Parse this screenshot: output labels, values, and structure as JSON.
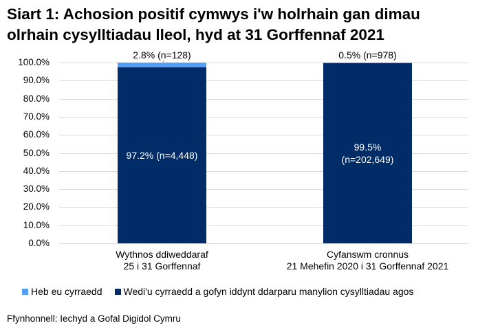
{
  "chart_data": {
    "type": "bar",
    "stacked": true,
    "title": "Siart 1: Achosion positif cymwys i'w holrhain gan dimau olrhain cysylltiadau lleol, hyd at 31 Gorffennaf 2021",
    "title_lines": [
      "Siart 1: Achosion positif cymwys i'w holrhain gan dimau",
      "olrhain cysylltiadau lleol, hyd at 31 Gorffennaf 2021"
    ],
    "categories": [
      [
        "Wythnos ddiweddaraf",
        "25 i 31 Gorffennaf"
      ],
      [
        "Cyfanswm cronnus",
        "21 Mehefin 2020 i 31 Gorffennaf 2021"
      ]
    ],
    "series": [
      {
        "name": "Heb eu cyrraedd",
        "color": "#559ef7",
        "values": [
          2.8,
          0.5
        ],
        "counts": [
          128,
          978
        ],
        "labels": [
          "2.8% (n=128)",
          "0.5% (n=978)"
        ]
      },
      {
        "name": "Wedi'u cyrraedd a gofyn iddynt ddarparu manylion cysylltiadau agos",
        "color": "#002d67",
        "values": [
          97.2,
          99.5
        ],
        "counts": [
          4448,
          202649
        ],
        "labels": [
          "97.2% (n=4,448)",
          "99.5% (n=202,649)"
        ],
        "label_lines": [
          [
            "97.2% (n=4,448)"
          ],
          [
            "99.5%",
            "(n=202,649)"
          ]
        ]
      }
    ],
    "xlabel": "",
    "ylabel": "",
    "ylim": [
      0,
      100
    ],
    "yticks": [
      "0.0%",
      "10.0%",
      "20.0%",
      "30.0%",
      "40.0%",
      "50.0%",
      "60.0%",
      "70.0%",
      "80.0%",
      "90.0%",
      "100.0%"
    ],
    "grid": true,
    "legend_position": "bottom",
    "source": "Ffynhonnell: Iechyd a Gofal Digidol Cymru"
  }
}
